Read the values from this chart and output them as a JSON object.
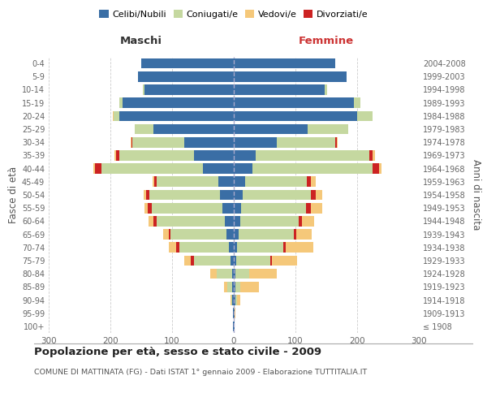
{
  "age_groups": [
    "100+",
    "95-99",
    "90-94",
    "85-89",
    "80-84",
    "75-79",
    "70-74",
    "65-69",
    "60-64",
    "55-59",
    "50-54",
    "45-49",
    "40-44",
    "35-39",
    "30-34",
    "25-29",
    "20-24",
    "15-19",
    "10-14",
    "5-9",
    "0-4"
  ],
  "birth_years": [
    "≤ 1908",
    "1909-1913",
    "1914-1918",
    "1919-1923",
    "1924-1928",
    "1929-1933",
    "1934-1938",
    "1939-1943",
    "1944-1948",
    "1949-1953",
    "1954-1958",
    "1959-1963",
    "1964-1968",
    "1969-1973",
    "1974-1978",
    "1979-1983",
    "1984-1988",
    "1989-1993",
    "1994-1998",
    "1999-2003",
    "2004-2008"
  ],
  "colors": {
    "celibi": "#3a6ea5",
    "coniugati": "#c5d8a0",
    "vedovi": "#f5c87a",
    "divorziati": "#cc2222"
  },
  "males": {
    "celibi": [
      1,
      1,
      2,
      3,
      3,
      5,
      8,
      12,
      15,
      18,
      22,
      25,
      50,
      65,
      80,
      130,
      185,
      180,
      145,
      155,
      150
    ],
    "coniugati": [
      0,
      0,
      2,
      8,
      25,
      60,
      80,
      90,
      110,
      115,
      115,
      100,
      165,
      120,
      85,
      30,
      10,
      5,
      2,
      0,
      0
    ],
    "vedovi": [
      0,
      0,
      1,
      5,
      10,
      10,
      12,
      10,
      8,
      6,
      4,
      3,
      3,
      2,
      1,
      1,
      1,
      0,
      0,
      0,
      0
    ],
    "divorziati": [
      0,
      0,
      0,
      0,
      0,
      5,
      5,
      3,
      5,
      6,
      5,
      4,
      10,
      6,
      1,
      0,
      0,
      0,
      0,
      0,
      0
    ]
  },
  "females": {
    "celibi": [
      1,
      1,
      2,
      3,
      3,
      4,
      5,
      8,
      10,
      12,
      15,
      18,
      30,
      35,
      70,
      120,
      200,
      195,
      148,
      183,
      165
    ],
    "coniugati": [
      0,
      0,
      3,
      8,
      22,
      55,
      75,
      90,
      95,
      105,
      110,
      100,
      195,
      185,
      95,
      65,
      25,
      10,
      3,
      0,
      0
    ],
    "vedovi": [
      0,
      1,
      5,
      30,
      45,
      40,
      45,
      25,
      20,
      18,
      10,
      8,
      5,
      4,
      1,
      1,
      0,
      0,
      0,
      0,
      0
    ],
    "divorziati": [
      0,
      0,
      0,
      0,
      0,
      3,
      4,
      3,
      5,
      8,
      8,
      7,
      10,
      5,
      2,
      0,
      0,
      0,
      0,
      0,
      0
    ]
  },
  "xlim": 300,
  "title": "Popolazione per età, sesso e stato civile - 2009",
  "subtitle": "COMUNE DI MATTINATA (FG) - Dati ISTAT 1° gennaio 2009 - Elaborazione TUTTITALIA.IT",
  "ylabel_left": "Fasce di età",
  "ylabel_right": "Anni di nascita",
  "xlabel_left": "Maschi",
  "xlabel_right": "Femmine",
  "bg_color": "#ffffff",
  "grid_color": "#cccccc",
  "legend_labels": [
    "Celibi/Nubili",
    "Coniugati/e",
    "Vedovi/e",
    "Divorziati/e"
  ]
}
